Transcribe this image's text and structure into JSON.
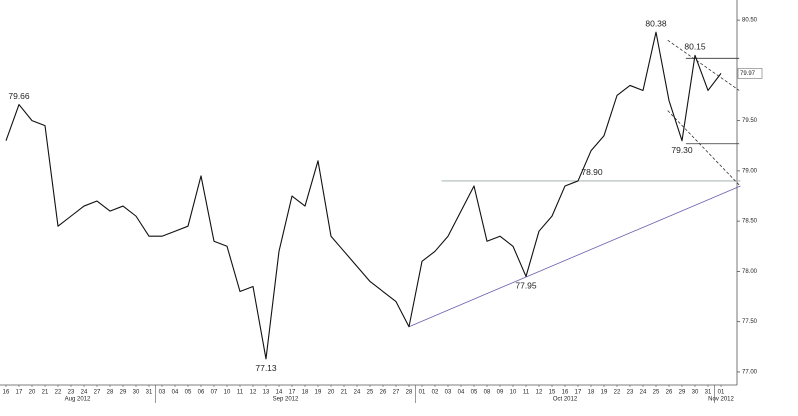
{
  "chart_data": {
    "type": "line",
    "categories": [
      "16",
      "17",
      "20",
      "21",
      "22",
      "23",
      "24",
      "27",
      "28",
      "29",
      "30",
      "31",
      "03",
      "04",
      "05",
      "06",
      "07",
      "10",
      "11",
      "12",
      "13",
      "14",
      "17",
      "18",
      "19",
      "20",
      "21",
      "24",
      "25",
      "26",
      "27",
      "28",
      "01",
      "02",
      "03",
      "04",
      "05",
      "08",
      "09",
      "10",
      "11",
      "12",
      "15",
      "16",
      "17",
      "18",
      "19",
      "22",
      "23",
      "24",
      "25",
      "26",
      "29",
      "30",
      "31",
      "01"
    ],
    "x_groups": [
      {
        "label": "Aug 2012",
        "start": 0,
        "end": 11
      },
      {
        "label": "Sep 2012",
        "start": 12,
        "end": 31
      },
      {
        "label": "Oct 2012",
        "start": 32,
        "end": 54
      },
      {
        "label": "Nov 2012",
        "start": 55,
        "end": 55
      }
    ],
    "series": [
      {
        "color": "#111111",
        "values": [
          79.3,
          79.66,
          79.5,
          79.45,
          78.45,
          78.55,
          78.65,
          78.7,
          78.6,
          78.65,
          78.55,
          78.35,
          78.35,
          78.4,
          78.45,
          78.95,
          78.3,
          78.25,
          77.8,
          77.85,
          77.13,
          78.2,
          78.75,
          78.65,
          79.1,
          78.35,
          78.2,
          78.05,
          77.9,
          77.8,
          77.7,
          77.45,
          78.1,
          78.2,
          78.35,
          78.6,
          78.85,
          78.3,
          78.35,
          78.25,
          77.95,
          78.4,
          78.55,
          78.85,
          78.9,
          79.2,
          79.35,
          79.75,
          79.85,
          79.8,
          80.38,
          79.7,
          79.3,
          80.15,
          79.8,
          79.97
        ],
        "value_labels": [
          null,
          "79.66",
          null,
          null,
          null,
          null,
          null,
          null,
          null,
          null,
          null,
          null,
          null,
          null,
          null,
          null,
          null,
          null,
          null,
          null,
          "77.13",
          null,
          null,
          null,
          null,
          null,
          null,
          null,
          null,
          null,
          null,
          null,
          null,
          null,
          null,
          null,
          null,
          null,
          null,
          null,
          "77.95",
          null,
          null,
          null,
          "78.90",
          null,
          null,
          null,
          null,
          null,
          "80.38",
          null,
          "79.30",
          "80.15",
          null,
          "79.97"
        ]
      }
    ],
    "trendlines": [
      {
        "x": [
          31,
          56.5
        ],
        "y": [
          77.45,
          78.85
        ],
        "color": "#6a5fb0",
        "dash": false
      },
      {
        "x": [
          33.5,
          56.5
        ],
        "y": [
          78.9,
          78.9
        ],
        "color": "#9aa7a7",
        "dash": false
      },
      {
        "x": [
          50.9,
          56.4
        ],
        "y": [
          80.3,
          79.8
        ],
        "color": "#333333",
        "dash": true
      },
      {
        "x": [
          50.9,
          56.4
        ],
        "y": [
          79.6,
          78.86
        ],
        "color": "#333333",
        "dash": true
      },
      {
        "x": [
          52.3,
          56.4
        ],
        "y": [
          80.12,
          80.12
        ],
        "color": "#333333",
        "dash": false
      },
      {
        "x": [
          52.3,
          56.4
        ],
        "y": [
          79.27,
          79.27
        ],
        "color": "#333333",
        "dash": false
      }
    ],
    "ylim": [
      76.87,
      80.7
    ],
    "yticks": [
      {
        "value": 77,
        "label": "77.00"
      },
      {
        "value": 77.5,
        "label": "77.50"
      },
      {
        "value": 78,
        "label": "78.00"
      },
      {
        "value": 78.5,
        "label": "78.50"
      },
      {
        "value": 79,
        "label": "79.00"
      },
      {
        "value": 79.5,
        "label": "79.50"
      },
      {
        "value": 80.5,
        "label": "80.50"
      }
    ]
  }
}
